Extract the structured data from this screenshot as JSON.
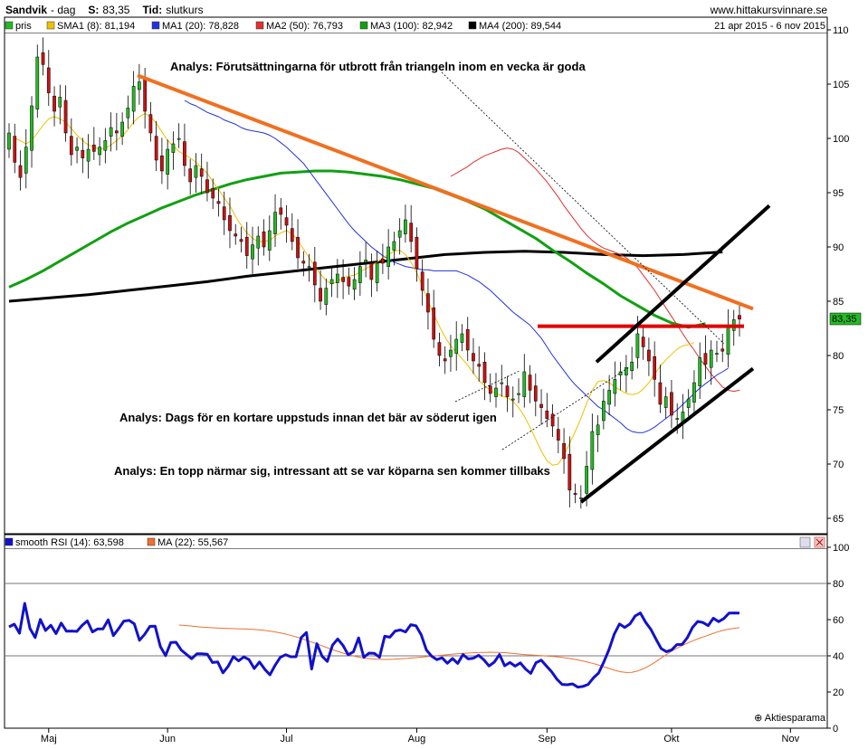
{
  "header": {
    "symbol": "Sandvik",
    "period": "dag",
    "close_label": "S:",
    "close_value": "83,35",
    "time_label": "Tid:",
    "time_value": "slutkurs",
    "site": "www.hittakursvinnare.se",
    "date_range": "21 apr 2015 - 6 nov 2015"
  },
  "colors": {
    "price_up": "#22bb22",
    "price_down": "#cc1111",
    "sma8": "#f0c000",
    "ma20": "#2233dd",
    "ma50": "#e03030",
    "ma100": "#11a011",
    "ma200": "#000000",
    "resistance": "#f07020",
    "channel": "#000000",
    "level": "#e00000",
    "rsi": "#1111cc",
    "rsi_ma": "#f07030"
  },
  "price_legend": [
    {
      "label": "pris",
      "color": "#22bb22"
    },
    {
      "label": "SMA1 (8): 81,194",
      "color": "#f0c000"
    },
    {
      "label": "MA1 (20): 78,828",
      "color": "#2233dd"
    },
    {
      "label": "MA2 (50): 76,793",
      "color": "#e03030"
    },
    {
      "label": "MA3 (100): 82,942",
      "color": "#11a011"
    },
    {
      "label": "MA4 (200): 89,544",
      "color": "#000000"
    }
  ],
  "rsi_legend": [
    {
      "label": "smooth RSI (14): 63,598",
      "color": "#1111cc"
    },
    {
      "label": "MA (22): 55,567",
      "color": "#f07030"
    }
  ],
  "annotations": [
    "Analys: Förutsättningarna för utbrott från triangeln inom en vecka är goda",
    "Analys: Dags för en kortare uppstuds innan det bär av söderut igen",
    "Analys: En topp närmar sig, intressant att se var köparna sen kommer tillbaks"
  ],
  "last_price_tag": "83,35",
  "watermark": "Aktiesparama",
  "chart_data": [
    {
      "type": "candlestick",
      "title": "Sandvik - dag",
      "x_tick_labels": [
        "Maj",
        "Jun",
        "Jul",
        "Aug",
        "Sep",
        "Okt",
        "Nov"
      ],
      "x_tick_index": [
        7,
        28,
        49,
        72,
        95,
        117,
        138
      ],
      "ylim": [
        63,
        111
      ],
      "yticks": [
        65,
        70,
        75,
        80,
        85,
        90,
        95,
        100,
        105,
        110
      ],
      "grid": false,
      "legend_position": "top",
      "close": [
        100.5,
        97.8,
        96.4,
        99.2,
        103.0,
        107.5,
        106.8,
        104.2,
        102.5,
        103.8,
        100.5,
        98.5,
        99.2,
        98.2,
        99.0,
        98.8,
        99.2,
        99.8,
        101.0,
        100.5,
        101.5,
        102.8,
        104.8,
        105.2,
        102.5,
        100.5,
        98.0,
        97.0,
        99.0,
        99.5,
        100.0,
        97.5,
        96.0,
        97.5,
        96.5,
        95.0,
        94.5,
        94.0,
        92.5,
        91.5,
        91.0,
        90.5,
        89.2,
        90.2,
        91.0,
        90.0,
        91.5,
        93.2,
        93.0,
        92.0,
        90.5,
        89.0,
        88.5,
        88.2,
        86.5,
        85.0,
        86.2,
        87.0,
        87.5,
        86.8,
        86.4,
        87.0,
        88.2,
        88.8,
        87.0,
        88.5,
        88.5,
        90.0,
        90.5,
        91.5,
        92.5,
        90.5,
        88.0,
        86.0,
        84.0,
        81.5,
        80.0,
        79.5,
        80.5,
        81.5,
        82.0,
        80.5,
        79.5,
        79.0,
        77.5,
        76.5,
        77.0,
        77.5,
        76.2,
        76.0,
        76.5,
        78.5,
        76.8,
        75.8,
        75.2,
        74.2,
        73.5,
        72.2,
        70.5,
        67.6,
        67.2,
        66.9,
        69.8,
        73.0,
        73.6,
        75.8,
        76.8,
        77.8,
        78.5,
        78.9,
        79.4,
        82.0,
        80.8,
        79.5,
        77.8,
        75.5,
        76.2,
        74.5,
        74.2,
        74.8,
        76.0,
        77.5,
        79.8,
        79.2,
        80.5,
        80.2,
        80.4,
        82.6,
        83.3,
        83.35
      ],
      "sma8": [
        100.0,
        99.8,
        99.5,
        99.8,
        100.5,
        101.2,
        101.8,
        102.0,
        101.8,
        101.5,
        100.9,
        100.3,
        99.8,
        99.4,
        99.2,
        99.0,
        99.1,
        99.4,
        99.8,
        100.2,
        100.8,
        101.5,
        102.0,
        102.3,
        102.0,
        101.4,
        100.6,
        99.8,
        99.3,
        98.8,
        98.5,
        98.2,
        97.8,
        97.3,
        96.8,
        96.0,
        95.3,
        94.5,
        93.8,
        92.8,
        92.0,
        91.3,
        90.8,
        90.5,
        90.5,
        90.6,
        91.0,
        91.3,
        91.5,
        91.2,
        90.6,
        89.8,
        89.0,
        88.2,
        87.5,
        86.9,
        86.6,
        86.8,
        87.2,
        87.3,
        87.4,
        87.7,
        88.0,
        88.3,
        88.6,
        89.0,
        89.3,
        89.6,
        89.7,
        89.3,
        88.6,
        87.6,
        86.4,
        85.0,
        83.8,
        82.7,
        81.7,
        80.9,
        80.3,
        79.7,
        79.1,
        78.4,
        77.7,
        77.2,
        76.8,
        76.5,
        76.3,
        76.1,
        75.8,
        75.2,
        74.4,
        73.4,
        72.3,
        71.2,
        70.3,
        69.9,
        70.0,
        70.8,
        71.9,
        73.0,
        74.2,
        75.6,
        76.8,
        77.6,
        77.7,
        77.5,
        77.1,
        76.8,
        76.5,
        76.4,
        76.5,
        76.9,
        77.5,
        78.3,
        79.0,
        79.6,
        80.1,
        80.6,
        80.9,
        81.0,
        81.194
      ],
      "sma8_start": 1,
      "ma20": [
        103.5,
        103.2,
        103.0,
        102.7,
        102.4,
        102.2,
        102.0,
        101.7,
        101.5,
        101.3,
        101.0,
        100.8,
        100.7,
        100.6,
        100.5,
        100.3,
        100.0,
        99.6,
        99.2,
        98.7,
        98.2,
        97.7,
        97.0,
        96.3,
        95.6,
        94.9,
        94.2,
        93.5,
        92.8,
        92.1,
        91.5,
        91.0,
        90.5,
        90.0,
        89.6,
        89.2,
        88.9,
        88.6,
        88.4,
        88.2,
        88.1,
        88.0,
        87.9,
        87.9,
        87.8,
        87.8,
        87.8,
        87.8,
        87.8,
        87.6,
        87.4,
        87.1,
        86.8,
        86.4,
        86.0,
        85.5,
        85.0,
        84.5,
        84.0,
        83.6,
        83.2,
        82.8,
        82.2,
        81.6,
        80.8,
        80.0,
        79.3,
        78.6,
        77.9,
        77.3,
        76.8,
        76.3,
        75.8,
        75.3,
        75.0,
        74.6,
        74.2,
        73.8,
        73.3,
        73.0,
        72.9,
        72.9,
        73.1,
        73.4,
        73.8,
        74.2,
        74.6,
        75.0,
        75.5,
        76.0,
        76.5,
        77.0,
        77.4,
        77.8,
        78.2,
        78.5,
        78.828
      ],
      "ma20_start": 31,
      "ma50": [
        96.5,
        96.8,
        97.1,
        97.4,
        97.8,
        98.1,
        98.4,
        98.6,
        98.8,
        99.0,
        99.1,
        99.0,
        98.7,
        98.2,
        97.7,
        97.2,
        96.6,
        96.0,
        95.3,
        94.6,
        93.8,
        93.1,
        92.4,
        91.7,
        91.1,
        90.6,
        90.2,
        89.9,
        89.7,
        89.5,
        89.3,
        89.0,
        88.6,
        88.1,
        87.4,
        86.7,
        86.0,
        85.2,
        84.4,
        83.6,
        82.8,
        82.0,
        81.2,
        80.5,
        79.7,
        79.0,
        78.3,
        77.7,
        77.1,
        76.8,
        76.7,
        76.8,
        76.8,
        76.793
      ],
      "ma50_start": 78,
      "ma100": [
        86.3,
        87.0,
        87.8,
        88.7,
        89.6,
        90.5,
        91.4,
        92.2,
        92.9,
        93.6,
        94.2,
        94.8,
        95.3,
        95.8,
        96.2,
        96.5,
        96.8,
        96.9,
        97.0,
        97.0,
        96.9,
        96.7,
        96.5,
        96.2,
        95.8,
        95.4,
        94.8,
        94.2,
        93.5,
        92.6,
        91.7,
        90.8,
        89.7,
        88.7,
        87.6,
        86.6,
        85.5,
        84.6,
        83.7,
        83.0,
        82.6,
        82.942
      ],
      "ma100_start": 0,
      "ma100_step": 3.0,
      "ma200": [
        85.0,
        85.3,
        85.6,
        86.0,
        86.4,
        86.8,
        87.3,
        87.7,
        88.1,
        88.5,
        88.9,
        89.3,
        89.5,
        89.6,
        89.5,
        89.3,
        89.2,
        89.3,
        89.544
      ],
      "ma200_start": 0,
      "ma200_step": 7.0
    },
    {
      "type": "line",
      "title": "smooth RSI (14)",
      "ylim": [
        0,
        100
      ],
      "yticks": [
        0,
        20,
        40,
        60,
        80,
        100
      ],
      "reference_lines": [
        40,
        80
      ],
      "series": [
        {
          "name": "smooth RSI (14)",
          "values": [
            56.0,
            57.5,
            52.5,
            69.0,
            55.2,
            50.1,
            60.1,
            54.0,
            56.9,
            52.3,
            58.1,
            53.6,
            53.7,
            53.5,
            56.8,
            59.3,
            53.2,
            54.9,
            54.9,
            59.9,
            51.2,
            55.0,
            59.2,
            59.6,
            57.7,
            48.6,
            51.9,
            56.3,
            56.4,
            45.1,
            40.1,
            47.4,
            47.5,
            43.2,
            40.8,
            38.4,
            41.1,
            41.1,
            40.9,
            36.3,
            36.6,
            30.6,
            34.2,
            39.6,
            37.2,
            39.4,
            37.9,
            33.0,
            36.6,
            32.6,
            29.5,
            34.8,
            39.2,
            40.6,
            39.5,
            39.5,
            50.1,
            52.9,
            32.7,
            46.7,
            39.8,
            36.9,
            45.9,
            49.3,
            45.8,
            40.6,
            42.2,
            49.9,
            39.2,
            41.5,
            41.4,
            39.2,
            50.8,
            50.3,
            53.7,
            54.3,
            53.2,
            57.2,
            56.6,
            51.6,
            43.2,
            39.8,
            37.9,
            38.9,
            35.9,
            38.5,
            35.8,
            40.7,
            38.3,
            38.7,
            40.3,
            37.8,
            34.4,
            36.5,
            40.7,
            34.5,
            36.3,
            34.3,
            36.1,
            32.7,
            30.3,
            36.2,
            37.6,
            34.4,
            31.2,
            27.1,
            24.2,
            24.0,
            24.5,
            22.7,
            23.1,
            24.2,
            27.8,
            30.5,
            36.6,
            43.5,
            52.0,
            57.6,
            55.7,
            57.6,
            62.0,
            63.7,
            58.6,
            54.7,
            49.2,
            44.0,
            42.3,
            43.3,
            46.2,
            46.3,
            50.0,
            55.7,
            59.0,
            58.4,
            56.7,
            60.8,
            58.9,
            60.6,
            63.6,
            63.7,
            63.598
          ]
        },
        {
          "name": "MA (22)",
          "values": [
            57.0,
            56.8,
            56.5,
            56.2,
            55.9,
            55.7,
            55.5,
            55.3,
            55.2,
            55.1,
            55.0,
            54.9,
            54.8,
            54.6,
            54.4,
            54.1,
            53.7,
            53.2,
            52.6,
            51.9,
            51.1,
            50.2,
            49.2,
            48.1,
            47.0,
            45.9,
            44.7,
            43.6,
            42.5,
            41.5,
            40.6,
            39.8,
            39.1,
            38.6,
            38.3,
            38.1,
            38.0,
            38.0,
            38.1,
            38.3,
            38.5,
            38.8,
            39.0,
            39.3,
            39.6,
            39.9,
            40.2,
            40.5,
            40.8,
            41.1,
            41.3,
            41.5,
            41.7,
            41.8,
            41.9,
            42.0,
            41.9,
            41.8,
            41.6,
            41.3,
            41.0,
            40.7,
            40.5,
            40.3,
            40.1,
            39.9,
            39.7,
            39.4,
            39.0,
            38.5,
            38.0,
            37.4,
            36.7,
            35.9,
            35.0,
            34.0,
            33.0,
            32.0,
            31.2,
            30.8,
            30.9,
            31.6,
            32.8,
            34.4,
            36.3,
            38.4,
            40.5,
            42.5,
            44.3,
            45.9,
            47.3,
            48.6,
            49.8,
            50.9,
            52.0,
            53.1,
            54.0,
            54.7,
            55.2,
            55.567
          ]
        }
      ]
    }
  ]
}
